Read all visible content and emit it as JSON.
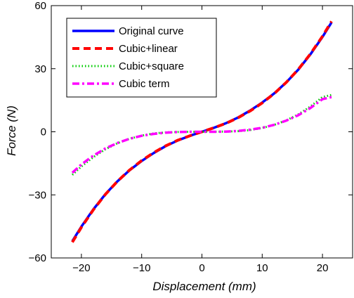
{
  "chart_data": {
    "type": "line",
    "title": "",
    "xlabel": "Displacement (mm)",
    "ylabel": "Force (N)",
    "xlim": [
      -25,
      25
    ],
    "ylim": [
      -60,
      60
    ],
    "xticks": [
      -20,
      -10,
      0,
      10,
      20
    ],
    "xtick_labels": [
      "−20",
      "−10",
      "0",
      "10",
      "20"
    ],
    "yticks": [
      -60,
      -30,
      0,
      30,
      60
    ],
    "ytick_labels": [
      "−60",
      "−30",
      "0",
      "30",
      "60"
    ],
    "grid": false,
    "legend_position": "top-left",
    "x": [
      -21.5,
      -20,
      -18,
      -16,
      -14,
      -12,
      -10,
      -8,
      -6,
      -4,
      -2,
      0,
      2,
      4,
      6,
      8,
      10,
      12,
      14,
      16,
      18,
      20,
      21.5
    ],
    "series": [
      {
        "name": "Original curve",
        "color": "#0000ff",
        "style": "solid",
        "values": [
          -52,
          -45.1,
          -36.8,
          -29.6,
          -23.5,
          -18.3,
          -13.9,
          -10.1,
          -6.8,
          -4.1,
          -1.9,
          0,
          1.9,
          4.1,
          6.8,
          10.1,
          13.9,
          18.3,
          23.5,
          29.6,
          36.8,
          45.1,
          52
        ]
      },
      {
        "name": "Cubic+linear",
        "color": "#ff0000",
        "style": "dashed",
        "values": [
          -52.5,
          -45.4,
          -37.0,
          -29.7,
          -23.5,
          -18.2,
          -13.7,
          -9.9,
          -6.7,
          -4.0,
          -1.9,
          0,
          1.9,
          4.0,
          6.7,
          9.9,
          13.7,
          18.2,
          23.5,
          29.7,
          37.0,
          45.4,
          52.5
        ]
      },
      {
        "name": "Cubic+square",
        "color": "#00cc00",
        "style": "dotted",
        "values": [
          -20.5,
          -16.5,
          -12.0,
          -8.3,
          -5.4,
          -3.3,
          -1.8,
          -0.8,
          -0.3,
          -0.1,
          0,
          0,
          0,
          0.1,
          0.3,
          0.8,
          1.8,
          3.3,
          5.4,
          8.3,
          12.0,
          16.5,
          17.5
        ]
      },
      {
        "name": "Cubic term",
        "color": "#ff00ff",
        "style": "dashdot",
        "values": [
          -19.5,
          -15.5,
          -11.3,
          -7.9,
          -5.3,
          -3.3,
          -1.9,
          -1.0,
          -0.4,
          -0.1,
          0,
          0,
          0,
          0.1,
          0.4,
          1.0,
          1.9,
          3.3,
          5.3,
          7.9,
          11.3,
          15.5,
          16.5
        ]
      }
    ]
  }
}
